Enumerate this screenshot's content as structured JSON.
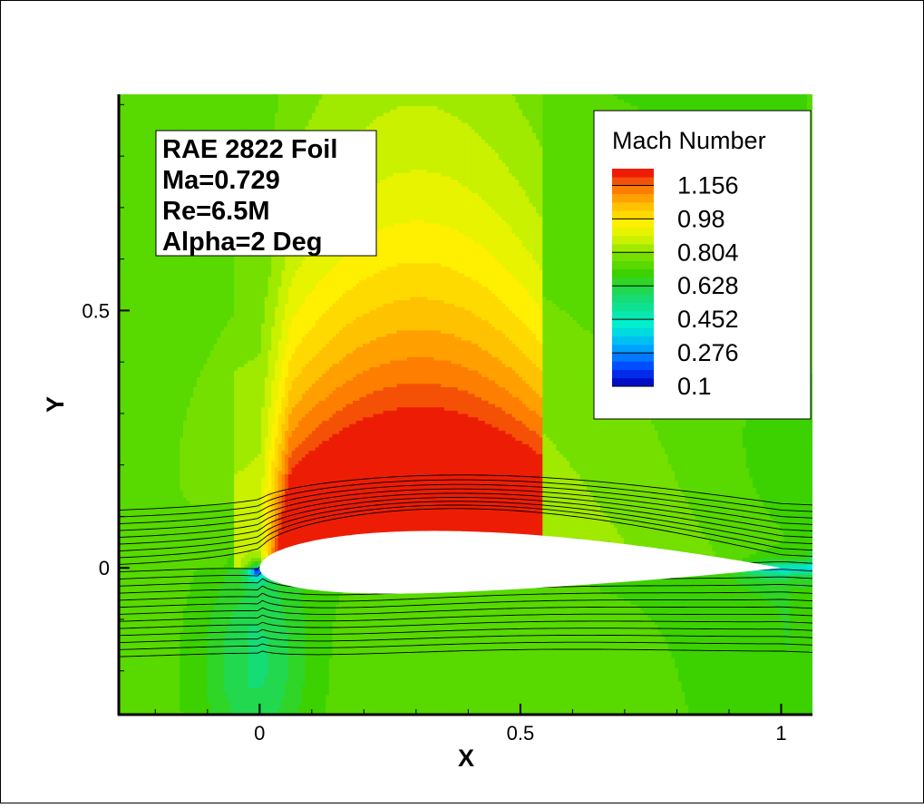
{
  "chart_data": {
    "type": "heatmap",
    "xlabel": "X",
    "ylabel": "Y",
    "xlim": [
      -0.27,
      1.06
    ],
    "ylim": [
      -0.285,
      0.92
    ],
    "x_ticks": [
      {
        "value": 0,
        "label": "0"
      },
      {
        "value": 0.5,
        "label": "0.5"
      },
      {
        "value": 1,
        "label": "1"
      }
    ],
    "y_ticks": [
      {
        "value": 0,
        "label": "0"
      },
      {
        "value": 0.5,
        "label": "0.5"
      }
    ],
    "x_minor_step": 0.1,
    "y_minor_step": 0.1,
    "annotation_lines": [
      "RAE 2822 Foil",
      "Ma=0.729",
      "Re=6.5M",
      "Alpha=2 Deg"
    ],
    "legend": {
      "title": "Mach Number",
      "placement": "top-right",
      "min": 0.1,
      "max": 1.244,
      "labels": [
        "1.156",
        "0.98",
        "0.804",
        "0.628",
        "0.452",
        "0.276",
        "0.1"
      ],
      "label_values": [
        1.156,
        0.98,
        0.804,
        0.628,
        0.452,
        0.276,
        0.1
      ],
      "levels": 26
    },
    "freestream_mach": 0.729,
    "supersonic_region": {
      "x_start": 0.02,
      "x_shock": 0.54,
      "peak_mach": 1.24
    },
    "airfoil": {
      "chord": 1.0,
      "max_thickness": 0.121
    },
    "streamline_count": 22
  }
}
